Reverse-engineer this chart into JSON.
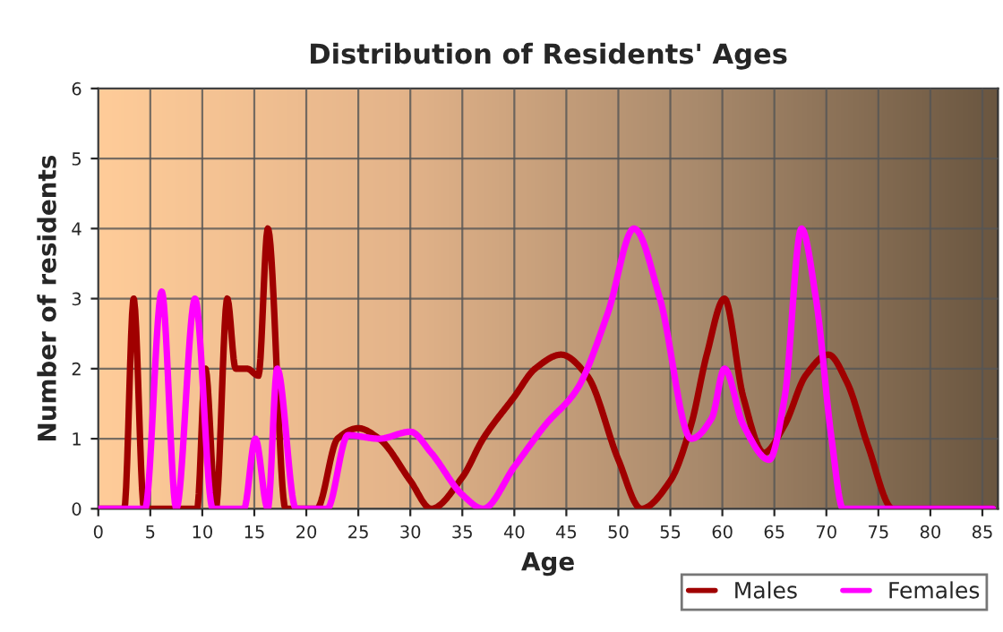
{
  "chart_data": {
    "type": "line",
    "title": "Distribution of Residents' Ages",
    "xlabel": "Age",
    "ylabel": "Number of residents",
    "xlim": [
      0,
      86.5
    ],
    "xticks": [
      0,
      5,
      10,
      15,
      20,
      25,
      30,
      35,
      40,
      45,
      50,
      55,
      60,
      65,
      70,
      75,
      80,
      85
    ],
    "ylim": [
      0,
      6
    ],
    "yticks": [
      0,
      1,
      2,
      3,
      4,
      5,
      6
    ],
    "grid": true,
    "legend": "bottom right",
    "marker": "none",
    "line_style": "solid",
    "series": [
      {
        "name": "Males",
        "color": "#a00000",
        "x": [
          0,
          2.5,
          3.4,
          4.4,
          6,
          8,
          9.5,
          10.3,
          11.3,
          12.4,
          13.2,
          14.3,
          15.4,
          16.3,
          18,
          21,
          23,
          25,
          27,
          30,
          32,
          35,
          37,
          40,
          42,
          44.5,
          47,
          50,
          52.2,
          55,
          57,
          58.5,
          60.2,
          62,
          64,
          66,
          68,
          70.2,
          72,
          74,
          76.4,
          80,
          86
        ],
        "values": [
          0,
          0,
          3,
          0,
          0,
          0,
          0,
          2,
          0,
          3,
          2,
          2,
          1.9,
          4,
          0,
          0,
          1,
          1.15,
          1,
          0.4,
          0,
          0.45,
          1,
          1.6,
          2,
          2.2,
          1.9,
          0.7,
          0,
          0.4,
          1.2,
          2.2,
          3,
          1.6,
          0.8,
          1.2,
          1.9,
          2.2,
          1.8,
          0.9,
          0,
          0,
          0
        ]
      },
      {
        "name": "Females",
        "color": "#ff00ff",
        "x": [
          0,
          4.5,
          6.1,
          7.5,
          9.3,
          11,
          14,
          15.1,
          16.3,
          17.2,
          19,
          22,
          24,
          27,
          30,
          32,
          35,
          37,
          40,
          43,
          46,
          49,
          51.5,
          54,
          57,
          59,
          60.2,
          62,
          64.5,
          66,
          67.6,
          69,
          70.5,
          71.6,
          80,
          86
        ],
        "values": [
          0,
          0,
          3.1,
          0,
          3,
          0,
          0,
          1,
          0,
          2,
          0,
          0,
          1.05,
          1,
          1.1,
          0.8,
          0.2,
          0,
          0.6,
          1.2,
          1.7,
          2.8,
          4,
          3,
          1,
          1.3,
          2,
          1.2,
          0.7,
          1.6,
          4,
          3,
          1,
          0,
          0,
          0
        ]
      }
    ]
  }
}
